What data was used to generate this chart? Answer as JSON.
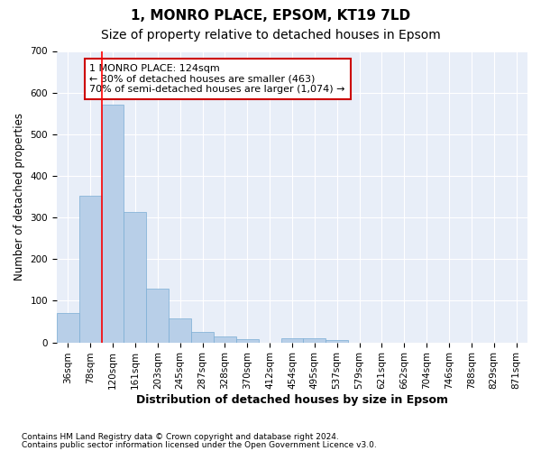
{
  "title1": "1, MONRO PLACE, EPSOM, KT19 7LD",
  "title2": "Size of property relative to detached houses in Epsom",
  "xlabel": "Distribution of detached houses by size in Epsom",
  "ylabel": "Number of detached properties",
  "footer1": "Contains HM Land Registry data © Crown copyright and database right 2024.",
  "footer2": "Contains public sector information licensed under the Open Government Licence v3.0.",
  "bar_labels": [
    "36sqm",
    "78sqm",
    "120sqm",
    "161sqm",
    "203sqm",
    "245sqm",
    "287sqm",
    "328sqm",
    "370sqm",
    "412sqm",
    "454sqm",
    "495sqm",
    "537sqm",
    "579sqm",
    "621sqm",
    "662sqm",
    "704sqm",
    "746sqm",
    "788sqm",
    "829sqm",
    "871sqm"
  ],
  "bar_values": [
    70,
    352,
    571,
    314,
    130,
    57,
    25,
    14,
    7,
    0,
    9,
    10,
    5,
    0,
    0,
    0,
    0,
    0,
    0,
    0,
    0
  ],
  "bar_color": "#b8cfe8",
  "bar_edgecolor": "#7aadd4",
  "bg_color": "#e8eef8",
  "grid_color": "#ffffff",
  "ylim": [
    0,
    700
  ],
  "yticks": [
    0,
    100,
    200,
    300,
    400,
    500,
    600,
    700
  ],
  "red_line_x": 1.5,
  "annotation_text": "1 MONRO PLACE: 124sqm\n← 30% of detached houses are smaller (463)\n70% of semi-detached houses are larger (1,074) →",
  "annotation_box_color": "#ffffff",
  "annotation_box_edgecolor": "#cc0000",
  "title1_fontsize": 11,
  "title2_fontsize": 10,
  "xlabel_fontsize": 9,
  "ylabel_fontsize": 8.5,
  "tick_fontsize": 7.5,
  "annot_fontsize": 8,
  "footer_fontsize": 6.5
}
